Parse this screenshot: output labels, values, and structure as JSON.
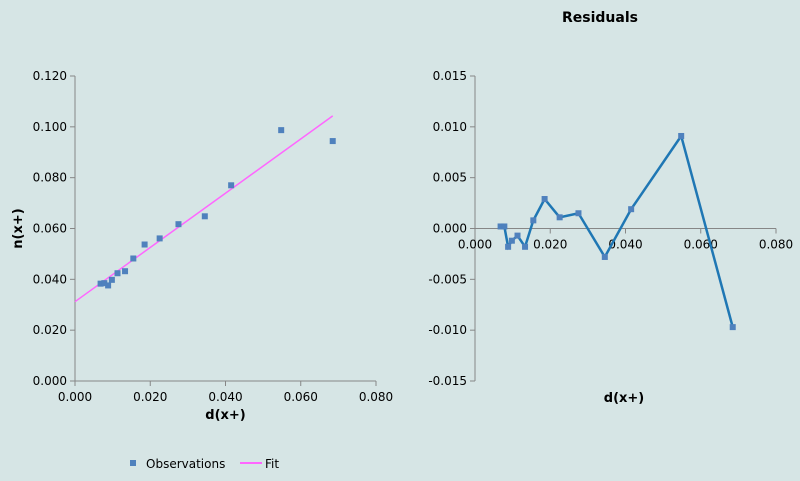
{
  "chart_data": [
    {
      "type": "scatter",
      "title": "",
      "xlabel": "d(x+)",
      "ylabel": "n(x+)",
      "xlim": [
        0,
        0.08
      ],
      "ylim": [
        0,
        0.12
      ],
      "xticks": [
        "0.000",
        "0.020",
        "0.040",
        "0.060",
        "0.080"
      ],
      "yticks": [
        "0.000",
        "0.020",
        "0.040",
        "0.060",
        "0.080",
        "0.100",
        "0.120"
      ],
      "grid": false,
      "series": [
        {
          "name": "Observations",
          "color": "#4f81bd",
          "marker": "square",
          "x": [
            0.0068,
            0.0078,
            0.0088,
            0.0098,
            0.0113,
            0.0133,
            0.0155,
            0.0185,
            0.0225,
            0.0275,
            0.0345,
            0.0415,
            0.0548,
            0.0685
          ],
          "y": [
            0.0383,
            0.0385,
            0.0376,
            0.0398,
            0.0424,
            0.0432,
            0.0482,
            0.0537,
            0.0561,
            0.0617,
            0.0648,
            0.077,
            0.0987,
            0.0944
          ]
        },
        {
          "name": "Fit",
          "color": "#ff66ff",
          "type": "line",
          "x": [
            0.0,
            0.0685
          ],
          "y": [
            0.0312,
            0.1043
          ]
        }
      ],
      "legend": {
        "placement": "bottom",
        "items": [
          {
            "label": "Observations",
            "color": "#4f81bd",
            "symbol": "square"
          },
          {
            "label": "Fit",
            "color": "#ff66ff",
            "symbol": "line"
          }
        ]
      }
    },
    {
      "type": "line",
      "title": "Residuals",
      "xlabel": "d(x+)",
      "ylabel": "",
      "xlim": [
        0,
        0.08
      ],
      "ylim": [
        -0.015,
        0.015
      ],
      "xticks": [
        "0.000",
        "0.020",
        "0.040",
        "0.060",
        "0.080"
      ],
      "yticks": [
        "-0.015",
        "-0.010",
        "-0.005",
        "0.000",
        "0.005",
        "0.010",
        "0.015"
      ],
      "grid": false,
      "series": [
        {
          "color": "#1f77b4",
          "marker": "square",
          "x": [
            0.0068,
            0.0078,
            0.0088,
            0.0098,
            0.0113,
            0.0133,
            0.0155,
            0.0185,
            0.0225,
            0.0275,
            0.0345,
            0.0415,
            0.0548,
            0.0685
          ],
          "y": [
            0.0002,
            0.0002,
            -0.0018,
            -0.0012,
            -0.0007,
            -0.0018,
            0.0008,
            0.0029,
            0.0011,
            0.0015,
            -0.0028,
            0.0019,
            0.0091,
            -0.0097
          ]
        }
      ]
    }
  ]
}
